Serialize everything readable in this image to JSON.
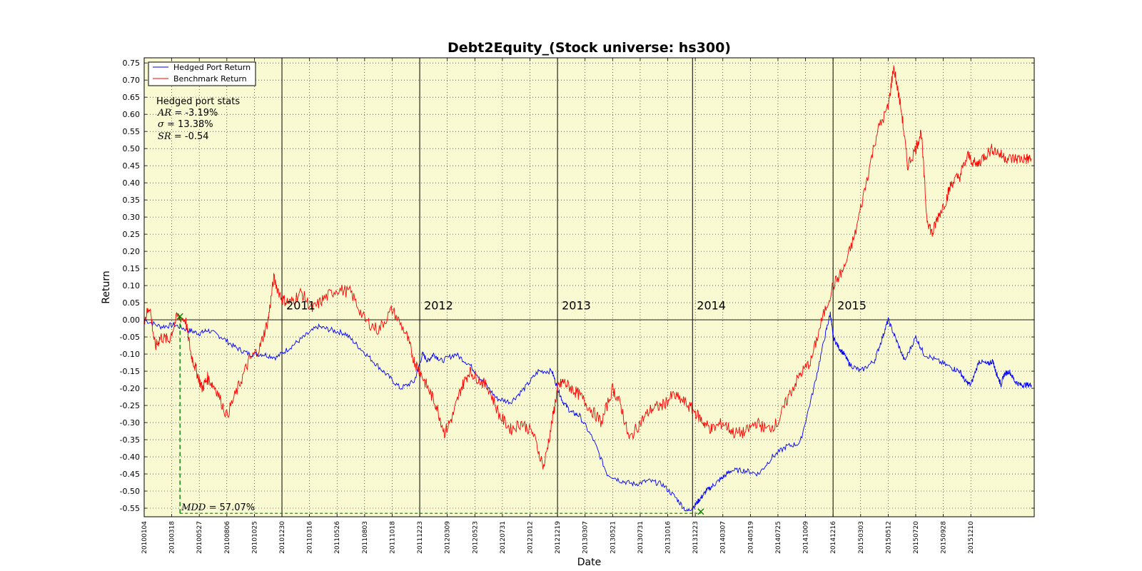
{
  "chart_data": {
    "type": "line",
    "title": "Debt2Equity_(Stock universe: hs300)",
    "xlabel": "Date",
    "ylabel": "Return",
    "ylim": [
      -0.575,
      0.765
    ],
    "yticks": [
      "0.75",
      "0.70",
      "0.65",
      "0.60",
      "0.55",
      "0.50",
      "0.45",
      "0.40",
      "0.35",
      "0.30",
      "0.25",
      "0.20",
      "0.15",
      "0.10",
      "0.05",
      "0.00",
      "-0.05",
      "-0.10",
      "-0.15",
      "-0.20",
      "-0.25",
      "-0.30",
      "-0.35",
      "-0.40",
      "-0.45",
      "-0.50",
      "-0.55"
    ],
    "xticks": [
      "20100104",
      "20100318",
      "20100527",
      "20100806",
      "20101025",
      "20101230",
      "20110316",
      "20110526",
      "20110803",
      "20111018",
      "20111223",
      "20120309",
      "20120523",
      "20120731",
      "20121012",
      "20121219",
      "20130307",
      "20130521",
      "20130731",
      "20131016",
      "20131223",
      "20140307",
      "20140519",
      "20140725",
      "20141009",
      "20141216",
      "20150303",
      "20150512",
      "20150720",
      "20150928",
      "20151210"
    ],
    "grid": true,
    "legend": "top-left",
    "year_markers": [
      {
        "label": "2011",
        "x": 5
      },
      {
        "label": "2012",
        "x": 10
      },
      {
        "label": "2013",
        "x": 15
      },
      {
        "label": "2014",
        "x": 19.9
      },
      {
        "label": "2015",
        "x": 25
      }
    ],
    "series": [
      {
        "name": "Hedged Port Return",
        "color": "#0000ff",
        "x": [
          0,
          0.6,
          1.1,
          1.6,
          2,
          2.3,
          2.8,
          3.3,
          3.8,
          4.3,
          4.8,
          5.3,
          5.8,
          6.3,
          6.8,
          7.3,
          7.8,
          8.3,
          8.8,
          9.3,
          9.8,
          10.1,
          10.3,
          10.5,
          10.8,
          11.3,
          11.8,
          12.3,
          12.8,
          13.3,
          13.8,
          14.3,
          14.8,
          15,
          15.2,
          15.5,
          15.8,
          16.3,
          16.8,
          17.3,
          17.8,
          18.3,
          18.8,
          19.3,
          19.7,
          20,
          20.2,
          20.4,
          20.7,
          21,
          21.3,
          21.8,
          22.3,
          22.8,
          23.3,
          23.8,
          24.3,
          24.7,
          24.9,
          25,
          25.2,
          25.4,
          25.6,
          26,
          26.5,
          26.8,
          27,
          27.3,
          27.6,
          28,
          28.3,
          28.8,
          29.3,
          29.6,
          29.8,
          30,
          30.3,
          30.6,
          30.8,
          30.9,
          31,
          31.1,
          31.2,
          31.4,
          31.6,
          31.8,
          32,
          32.2
        ],
        "y": [
          0,
          -0.02,
          -0.015,
          -0.03,
          -0.04,
          -0.03,
          -0.05,
          -0.08,
          -0.1,
          -0.1,
          -0.11,
          -0.08,
          -0.05,
          -0.02,
          -0.03,
          -0.04,
          -0.08,
          -0.12,
          -0.16,
          -0.2,
          -0.18,
          -0.1,
          -0.12,
          -0.1,
          -0.12,
          -0.1,
          -0.13,
          -0.18,
          -0.23,
          -0.24,
          -0.2,
          -0.15,
          -0.15,
          -0.2,
          -0.24,
          -0.27,
          -0.28,
          -0.35,
          -0.45,
          -0.47,
          -0.48,
          -0.47,
          -0.48,
          -0.52,
          -0.56,
          -0.54,
          -0.52,
          -0.5,
          -0.48,
          -0.46,
          -0.44,
          -0.44,
          -0.45,
          -0.4,
          -0.37,
          -0.36,
          -0.2,
          -0.05,
          0.02,
          -0.05,
          -0.08,
          -0.1,
          -0.13,
          -0.15,
          -0.12,
          -0.05,
          0.0,
          -0.06,
          -0.12,
          -0.05,
          -0.1,
          -0.12,
          -0.14,
          -0.15,
          -0.18,
          -0.19,
          -0.12,
          -0.13,
          -0.12,
          -0.15,
          -0.17,
          -0.19,
          -0.16,
          -0.15,
          -0.18,
          -0.19,
          -0.19,
          -0.19
        ]
      },
      {
        "name": "Benchmark Return",
        "color": "#ff0000",
        "x": [
          0,
          0.2,
          0.4,
          0.6,
          0.9,
          1.2,
          1.5,
          1.7,
          1.9,
          2.1,
          2.3,
          2.6,
          3,
          3.4,
          3.8,
          4.2,
          4.5,
          4.7,
          5,
          5.3,
          5.7,
          6.1,
          6.5,
          7,
          7.5,
          8,
          8.5,
          9,
          9.5,
          9.8,
          10,
          10.3,
          10.6,
          10.9,
          11.2,
          11.5,
          11.8,
          12.1,
          12.5,
          12.9,
          13.3,
          13.7,
          14.1,
          14.5,
          14.8,
          15,
          15.2,
          15.5,
          15.8,
          16.2,
          16.6,
          17,
          17.3,
          17.6,
          18,
          18.4,
          18.8,
          19.2,
          19.6,
          20,
          20.3,
          20.6,
          21,
          21.4,
          21.8,
          22.2,
          22.6,
          23,
          23.4,
          23.8,
          24.2,
          24.6,
          25,
          25.4,
          25.8,
          26.2,
          26.6,
          27,
          27.2,
          27.5,
          27.7,
          28,
          28.2,
          28.4,
          28.6,
          28.8,
          29.1,
          29.3,
          29.6,
          29.9,
          30.2,
          30.5,
          30.8,
          31.1,
          31.4,
          31.7,
          32,
          32.2
        ],
        "y": [
          0,
          0.04,
          -0.08,
          -0.05,
          -0.06,
          0.01,
          0.0,
          -0.1,
          -0.15,
          -0.2,
          -0.17,
          -0.2,
          -0.28,
          -0.2,
          -0.12,
          -0.08,
          0.0,
          0.12,
          0.06,
          0.05,
          0.08,
          0.03,
          0.06,
          0.09,
          0.08,
          0.0,
          -0.03,
          0.03,
          -0.04,
          -0.12,
          -0.15,
          -0.2,
          -0.25,
          -0.33,
          -0.28,
          -0.2,
          -0.15,
          -0.17,
          -0.2,
          -0.28,
          -0.32,
          -0.3,
          -0.33,
          -0.43,
          -0.3,
          -0.2,
          -0.18,
          -0.2,
          -0.22,
          -0.26,
          -0.3,
          -0.2,
          -0.25,
          -0.35,
          -0.3,
          -0.26,
          -0.25,
          -0.22,
          -0.24,
          -0.27,
          -0.3,
          -0.32,
          -0.3,
          -0.33,
          -0.33,
          -0.3,
          -0.32,
          -0.3,
          -0.22,
          -0.16,
          -0.12,
          0.0,
          0.1,
          0.15,
          0.25,
          0.4,
          0.55,
          0.62,
          0.74,
          0.6,
          0.45,
          0.5,
          0.55,
          0.3,
          0.25,
          0.3,
          0.35,
          0.4,
          0.42,
          0.48,
          0.45,
          0.48,
          0.5,
          0.48,
          0.47,
          0.47,
          0.47,
          0.47
        ]
      }
    ],
    "stats": {
      "heading": "Hedged port stats",
      "lines": [
        {
          "sym": "AR",
          "value": "-3.19%"
        },
        {
          "sym": "σ",
          "value": "13.38%"
        },
        {
          "sym": "SR",
          "value": "-0.54"
        }
      ]
    },
    "drawdown": {
      "label_sym": "MDD",
      "label_value": "57.07%",
      "peak": {
        "x": 1.3,
        "y": 0.01
      },
      "trough": {
        "x": 20.2,
        "y": -0.56
      },
      "color": "#008000"
    }
  },
  "colors": {
    "plot_bg": "#fafad2",
    "hedged": "#0000ff",
    "benchmark": "#ff0000",
    "drawdown": "#008000"
  }
}
